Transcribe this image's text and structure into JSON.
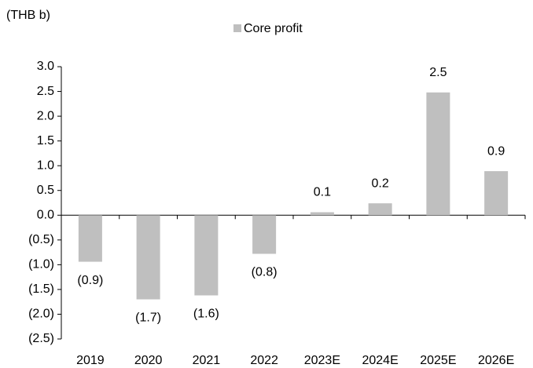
{
  "chart_data": {
    "type": "bar",
    "unit_label": "(THB b)",
    "categories": [
      "2019",
      "2020",
      "2021",
      "2022",
      "2023E",
      "2024E",
      "2025E",
      "2026E"
    ],
    "series": [
      {
        "name": "Core profit",
        "color": "#bfbfbf",
        "values": [
          -0.94,
          -1.7,
          -1.62,
          -0.78,
          0.06,
          0.24,
          2.48,
          0.89
        ],
        "value_labels": [
          "(0.9)",
          "(1.7)",
          "(1.6)",
          "(0.8)",
          "0.1",
          "0.2",
          "2.5",
          "0.9"
        ]
      }
    ],
    "ylim": [
      -2.5,
      3.0
    ],
    "yticks": [
      {
        "value": -2.5,
        "label": "(2.5)"
      },
      {
        "value": -2.0,
        "label": "(2.0)"
      },
      {
        "value": -1.5,
        "label": "(1.5)"
      },
      {
        "value": -1.0,
        "label": "(1.0)"
      },
      {
        "value": -0.5,
        "label": "(0.5)"
      },
      {
        "value": 0,
        "label": "0.0"
      },
      {
        "value": 0.5,
        "label": "0.5"
      },
      {
        "value": 1.0,
        "label": "1.0"
      },
      {
        "value": 1.5,
        "label": "1.5"
      },
      {
        "value": 2.0,
        "label": "2.0"
      },
      {
        "value": 2.5,
        "label": "2.5"
      },
      {
        "value": 3.0,
        "label": "3.0"
      }
    ],
    "grid": false
  }
}
